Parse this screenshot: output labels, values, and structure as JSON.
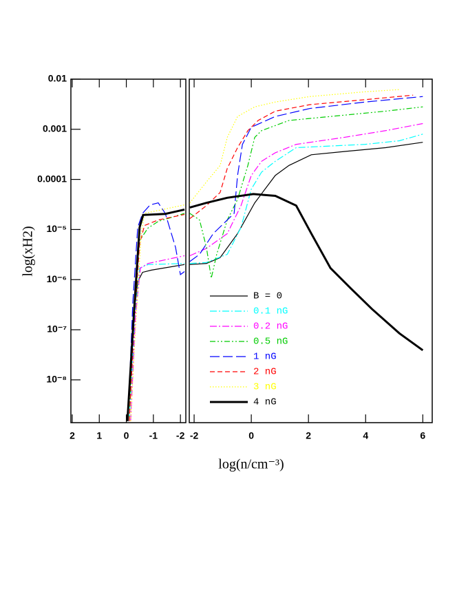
{
  "chart_data": [
    {
      "type": "line",
      "xlim": [
        2.05,
        -2.2
      ],
      "xticks": [
        2,
        1,
        0,
        -1,
        -2
      ],
      "ylim": [
        1.4e-09,
        0.01
      ],
      "yscale": "log",
      "yticks": [
        0.01,
        0.001,
        0.0001,
        {
          "value": 1e-05,
          "label": "10⁻⁵"
        },
        {
          "value": 1e-06,
          "label": "10⁻⁶"
        },
        {
          "value": 1e-07,
          "label": "10⁻⁷"
        },
        {
          "value": 1e-08,
          "label": "10⁻⁸"
        }
      ],
      "y_label": "log(xH2)",
      "series": [
        {
          "color": "#000000",
          "linestyle": "solid",
          "linewidth": 1.2,
          "x": [
            -0.06,
            -0.24,
            -0.42,
            -0.6,
            -0.93,
            -2.15
          ],
          "values": [
            1.5e-09,
            1.4e-07,
            9.1e-07,
            1.4e-06,
            1.55e-06,
            2e-06
          ]
        },
        {
          "color": "#00ffff",
          "linestyle": "dashdot",
          "linewidth": 1.2,
          "x": [
            -0.11,
            -0.32,
            -0.49,
            -0.8,
            -2.15
          ],
          "values": [
            1.5e-09,
            1.9e-07,
            1.7e-06,
            2e-06,
            2.1e-06
          ]
        },
        {
          "color": "#ff00ff",
          "linestyle": "dashdot",
          "linewidth": 1.2,
          "x": [
            -0.16,
            -0.34,
            -0.52,
            -0.8,
            -2.15
          ],
          "values": [
            1.5e-09,
            1.9e-07,
            1.7e-06,
            2.1e-06,
            3e-06
          ]
        },
        {
          "color": "#00cc00",
          "linestyle": "dashdotdot",
          "linewidth": 1.2,
          "x": [
            -0.11,
            -0.29,
            -0.49,
            -0.8,
            -1.18,
            -2.15
          ],
          "values": [
            1.5e-09,
            3.5e-07,
            6e-06,
            1.07e-05,
            1.45e-05,
            2.1e-05
          ]
        },
        {
          "color": "#0000ff",
          "linestyle": "longdash",
          "linewidth": 1.2,
          "x": [
            -0.06,
            -0.24,
            -0.42,
            -0.6,
            -0.88,
            -1.18,
            -1.44,
            -1.82,
            -2.0,
            -2.15
          ],
          "values": [
            1.5e-09,
            3.5e-07,
            1.1e-05,
            2.1e-05,
            3.1e-05,
            3.4e-05,
            2.1e-05,
            4.4e-06,
            1.26e-06,
            1.45e-06
          ]
        },
        {
          "color": "#ff0000",
          "linestyle": "dash",
          "linewidth": 1.2,
          "x": [
            -0.11,
            -0.29,
            -0.49,
            -0.67,
            -1.18,
            -2.15
          ],
          "values": [
            1.5e-09,
            1.4e-07,
            5.1e-06,
            1.2e-05,
            1.55e-05,
            2e-05
          ]
        },
        {
          "color": "#ffff00",
          "linestyle": "dot",
          "linewidth": 1.2,
          "x": [
            -0.16,
            -0.32,
            -0.55,
            -0.67,
            -2.15
          ],
          "values": [
            1.5e-09,
            7.2e-08,
            8.3e-06,
            2.1e-05,
            3.1e-05
          ]
        },
        {
          "color": "#000000",
          "linestyle": "solid",
          "linewidth": 3,
          "x": [
            -0.04,
            -0.29,
            -0.49,
            -0.62,
            -1.44,
            -2.15
          ],
          "values": [
            1.5e-09,
            2.6e-07,
            1.1e-05,
            1.95e-05,
            2.05e-05,
            2.5e-05
          ]
        }
      ]
    },
    {
      "type": "line",
      "xlim": [
        -2.17,
        6.33
      ],
      "xticks": [
        -2,
        0,
        2,
        4,
        6
      ],
      "ylim": [
        1.4e-09,
        0.01
      ],
      "yscale": "log",
      "x_label": "log(n/cm⁻³)",
      "legend": "lower left",
      "series": [
        {
          "name": "B = 0",
          "color": "#000000",
          "linestyle": "solid",
          "linewidth": 1.2,
          "x": [
            -2.15,
            -1.57,
            -1.09,
            -0.48,
            0.12,
            0.84,
            1.32,
            2.1,
            3.25,
            4.7,
            6.0
          ],
          "values": [
            2e-06,
            2.1e-06,
            2.75e-06,
            8.3e-06,
            3.4e-05,
            0.00012,
            0.00019,
            0.00031,
            0.00036,
            0.00043,
            0.00055
          ]
        },
        {
          "name": "0.1 nG",
          "color": "#00ffff",
          "linestyle": "dashdot",
          "linewidth": 1.2,
          "x": [
            -2.15,
            -1.57,
            -0.84,
            -0.36,
            0.0,
            0.36,
            0.84,
            1.57,
            2.29,
            3.98,
            5.18,
            6.0
          ],
          "values": [
            2.1e-06,
            2.2e-06,
            3.2e-06,
            1.1e-05,
            6.4e-05,
            0.00014,
            0.00023,
            0.00043,
            0.00045,
            0.0005,
            0.00059,
            0.0008
          ]
        },
        {
          "name": "0.2 nG",
          "color": "#ff00ff",
          "linestyle": "dashdot",
          "linewidth": 1.2,
          "x": [
            -2.15,
            -1.57,
            -0.84,
            -0.36,
            0.0,
            0.36,
            0.84,
            1.57,
            3.25,
            4.7,
            6.0
          ],
          "values": [
            3e-06,
            4.2e-06,
            8.3e-06,
            3e-05,
            0.00012,
            0.00023,
            0.00034,
            0.0005,
            0.00069,
            0.00094,
            0.0013
          ]
        },
        {
          "name": "0.5 nG",
          "color": "#00cc00",
          "linestyle": "dashdotdot",
          "linewidth": 1.2,
          "x": [
            -2.15,
            -1.81,
            -1.57,
            -1.4,
            -1.21,
            -0.84,
            -0.48,
            -0.12,
            0.12,
            0.36,
            1.32,
            2.77,
            4.7,
            6.0
          ],
          "values": [
            2.1e-05,
            1.55e-05,
            4.4e-06,
            1.07e-06,
            3.2e-06,
            1.55e-05,
            4e-05,
            0.00019,
            0.00069,
            0.00094,
            0.0015,
            0.0018,
            0.0023,
            0.0028
          ]
        },
        {
          "name": "1 nG",
          "color": "#0000ff",
          "linestyle": "longdash",
          "linewidth": 1.2,
          "x": [
            -2.15,
            -1.81,
            -1.33,
            -0.84,
            -0.6,
            -0.48,
            -0.31,
            0.0,
            0.84,
            2.05,
            3.98,
            6.0
          ],
          "values": [
            2.3e-06,
            3.2e-06,
            8.3e-06,
            1.55e-05,
            2.1e-05,
            0.00012,
            0.0005,
            0.0011,
            0.0018,
            0.0026,
            0.0035,
            0.0045
          ]
        },
        {
          "name": "2 nG",
          "color": "#ff0000",
          "linestyle": "dash",
          "linewidth": 1.2,
          "x": [
            -2.15,
            -1.57,
            -1.09,
            -0.84,
            -0.48,
            -0.12,
            0.24,
            0.84,
            2.05,
            3.98,
            5.66
          ],
          "values": [
            1.65e-05,
            3e-05,
            5.5e-05,
            0.000166,
            0.00043,
            0.00094,
            0.0015,
            0.0023,
            0.0031,
            0.0039,
            0.0048
          ]
        },
        {
          "name": "3 nG",
          "color": "#ffff00",
          "linestyle": "dot",
          "linewidth": 1.2,
          "x": [
            -2.15,
            -1.57,
            -1.09,
            -0.84,
            -0.48,
            0.12,
            0.84,
            2.05,
            3.98,
            5.18
          ],
          "values": [
            3.4e-05,
            8.9e-05,
            0.00019,
            0.00069,
            0.0018,
            0.0028,
            0.0035,
            0.0045,
            0.0056,
            0.0062
          ]
        },
        {
          "name": "4 nG",
          "color": "#000000",
          "linestyle": "solid",
          "linewidth": 3,
          "x": [
            -2.15,
            -1.57,
            -0.84,
            0.07,
            0.84,
            1.57,
            2.1,
            2.77,
            3.49,
            4.22,
            5.18,
            6.0
          ],
          "values": [
            2.75e-05,
            3.4e-05,
            4.3e-05,
            5.1e-05,
            4.7e-05,
            3e-05,
            8.3e-06,
            1.7e-06,
            6.6e-07,
            2.6e-07,
            8.5e-08,
            3.9e-08
          ]
        }
      ]
    }
  ]
}
